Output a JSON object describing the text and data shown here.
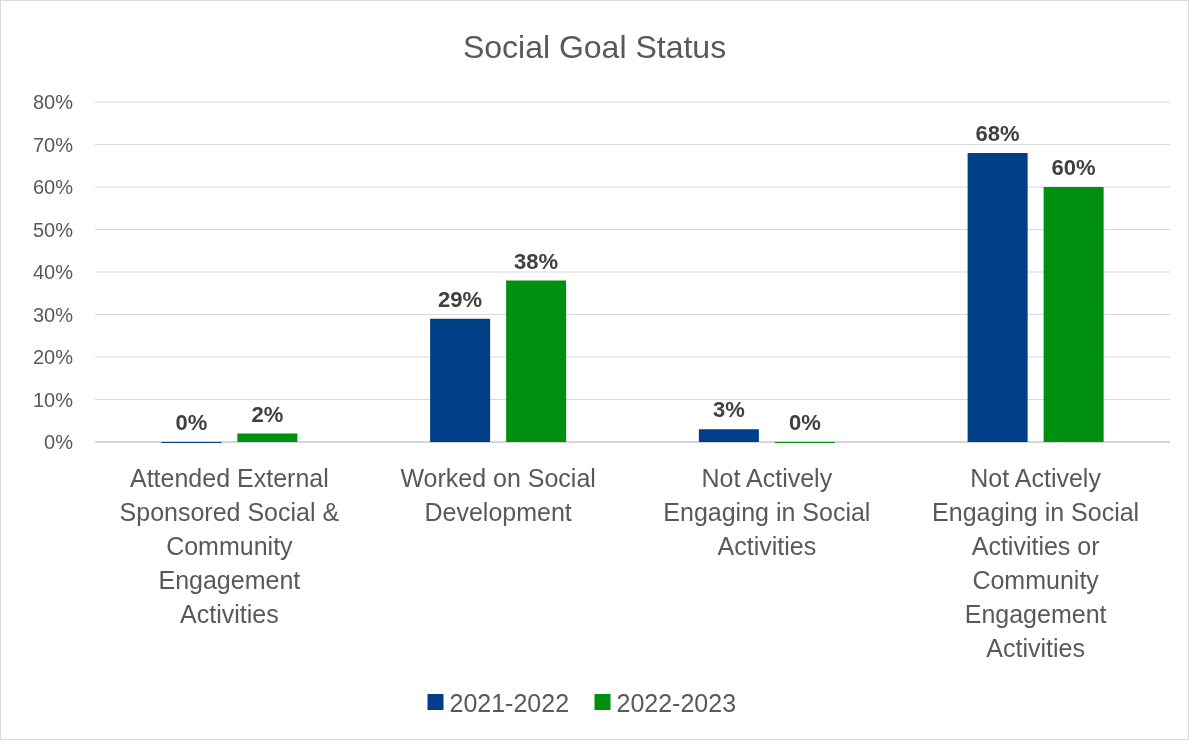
{
  "chart_data": {
    "type": "bar",
    "title": "Social Goal Status",
    "categories": [
      "Attended External Sponsored Social & Community Engagement Activities",
      "Worked on Social Development",
      "Not Actively Engaging in Social Activities",
      "Not Actively Engaging in Social Activities or Community Engagement Activities"
    ],
    "series": [
      {
        "name": "2021-2022",
        "color": "#003f87",
        "values": [
          0,
          29,
          3,
          68
        ],
        "value_labels": [
          "0%",
          "29%",
          "3%",
          "68%"
        ]
      },
      {
        "name": "2022-2023",
        "color": "#009010",
        "values": [
          2,
          38,
          0,
          60
        ],
        "value_labels": [
          "2%",
          "38%",
          "0%",
          "60%"
        ]
      }
    ],
    "ylim": [
      0,
      80
    ],
    "yticks": [
      {
        "value": 0,
        "label": "0%"
      },
      {
        "value": 10,
        "label": "10%"
      },
      {
        "value": 20,
        "label": "20%"
      },
      {
        "value": 30,
        "label": "30%"
      },
      {
        "value": 40,
        "label": "40%"
      },
      {
        "value": 50,
        "label": "50%"
      },
      {
        "value": 60,
        "label": "60%"
      },
      {
        "value": 70,
        "label": "70%"
      },
      {
        "value": 80,
        "label": "80%"
      }
    ],
    "grid": "y",
    "legend": "bottom"
  }
}
